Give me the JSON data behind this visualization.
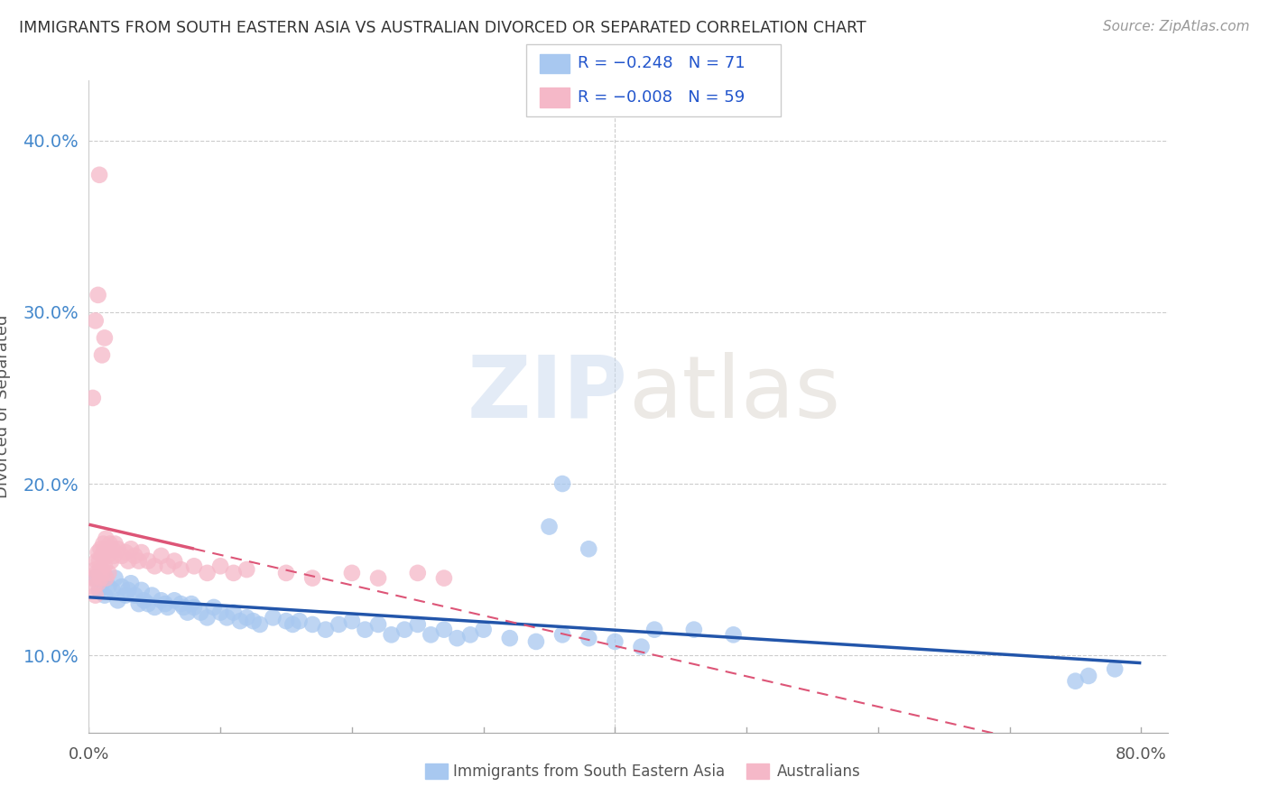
{
  "title": "IMMIGRANTS FROM SOUTH EASTERN ASIA VS AUSTRALIAN DIVORCED OR SEPARATED CORRELATION CHART",
  "source": "Source: ZipAtlas.com",
  "ylabel": "Divorced or Separated",
  "yticks": [
    0.1,
    0.2,
    0.3,
    0.4
  ],
  "ytick_labels": [
    "10.0%",
    "20.0%",
    "30.0%",
    "40.0%"
  ],
  "xlim": [
    0.0,
    0.82
  ],
  "ylim": [
    0.055,
    0.435
  ],
  "legend_text1": "R = −0.248   N = 71",
  "legend_text2": "R = −0.008   N = 59",
  "blue_color": "#a8c8f0",
  "pink_color": "#f5b8c8",
  "blue_line_color": "#2255aa",
  "pink_line_color": "#dd5577",
  "legend_text_color": "#2255cc",
  "watermark_top": "ZIP",
  "watermark_bot": "atlas",
  "background_color": "#ffffff",
  "grid_color": "#cccccc",
  "blue_x": [
    0.005,
    0.008,
    0.01,
    0.012,
    0.015,
    0.018,
    0.02,
    0.022,
    0.025,
    0.028,
    0.03,
    0.032,
    0.035,
    0.038,
    0.04,
    0.042,
    0.045,
    0.048,
    0.05,
    0.055,
    0.058,
    0.06,
    0.065,
    0.07,
    0.072,
    0.075,
    0.078,
    0.08,
    0.085,
    0.09,
    0.095,
    0.1,
    0.105,
    0.11,
    0.115,
    0.12,
    0.125,
    0.13,
    0.14,
    0.15,
    0.155,
    0.16,
    0.17,
    0.18,
    0.19,
    0.2,
    0.21,
    0.22,
    0.23,
    0.24,
    0.25,
    0.26,
    0.27,
    0.28,
    0.29,
    0.3,
    0.32,
    0.34,
    0.36,
    0.38,
    0.4,
    0.42,
    0.35,
    0.38,
    0.43,
    0.46,
    0.49,
    0.36,
    0.75,
    0.76,
    0.78
  ],
  "blue_y": [
    0.145,
    0.138,
    0.142,
    0.135,
    0.14,
    0.138,
    0.145,
    0.132,
    0.14,
    0.135,
    0.138,
    0.142,
    0.135,
    0.13,
    0.138,
    0.132,
    0.13,
    0.135,
    0.128,
    0.132,
    0.13,
    0.128,
    0.132,
    0.13,
    0.128,
    0.125,
    0.13,
    0.128,
    0.125,
    0.122,
    0.128,
    0.125,
    0.122,
    0.125,
    0.12,
    0.122,
    0.12,
    0.118,
    0.122,
    0.12,
    0.118,
    0.12,
    0.118,
    0.115,
    0.118,
    0.12,
    0.115,
    0.118,
    0.112,
    0.115,
    0.118,
    0.112,
    0.115,
    0.11,
    0.112,
    0.115,
    0.11,
    0.108,
    0.112,
    0.11,
    0.108,
    0.105,
    0.175,
    0.162,
    0.115,
    0.115,
    0.112,
    0.2,
    0.085,
    0.088,
    0.092
  ],
  "pink_x": [
    0.003,
    0.004,
    0.005,
    0.005,
    0.006,
    0.006,
    0.007,
    0.007,
    0.008,
    0.008,
    0.009,
    0.009,
    0.01,
    0.01,
    0.011,
    0.011,
    0.012,
    0.012,
    0.013,
    0.013,
    0.014,
    0.015,
    0.015,
    0.016,
    0.017,
    0.018,
    0.019,
    0.02,
    0.022,
    0.025,
    0.028,
    0.03,
    0.032,
    0.035,
    0.038,
    0.04,
    0.045,
    0.05,
    0.055,
    0.06,
    0.065,
    0.07,
    0.08,
    0.09,
    0.1,
    0.11,
    0.12,
    0.15,
    0.17,
    0.2,
    0.22,
    0.25,
    0.27,
    0.005,
    0.007,
    0.008,
    0.003,
    0.01,
    0.012
  ],
  "pink_y": [
    0.145,
    0.14,
    0.15,
    0.135,
    0.155,
    0.148,
    0.16,
    0.142,
    0.155,
    0.148,
    0.162,
    0.145,
    0.158,
    0.15,
    0.165,
    0.148,
    0.16,
    0.152,
    0.168,
    0.145,
    0.158,
    0.162,
    0.148,
    0.165,
    0.155,
    0.162,
    0.158,
    0.165,
    0.162,
    0.158,
    0.16,
    0.155,
    0.162,
    0.158,
    0.155,
    0.16,
    0.155,
    0.152,
    0.158,
    0.152,
    0.155,
    0.15,
    0.152,
    0.148,
    0.152,
    0.148,
    0.15,
    0.148,
    0.145,
    0.148,
    0.145,
    0.148,
    0.145,
    0.295,
    0.31,
    0.38,
    0.25,
    0.275,
    0.285
  ]
}
